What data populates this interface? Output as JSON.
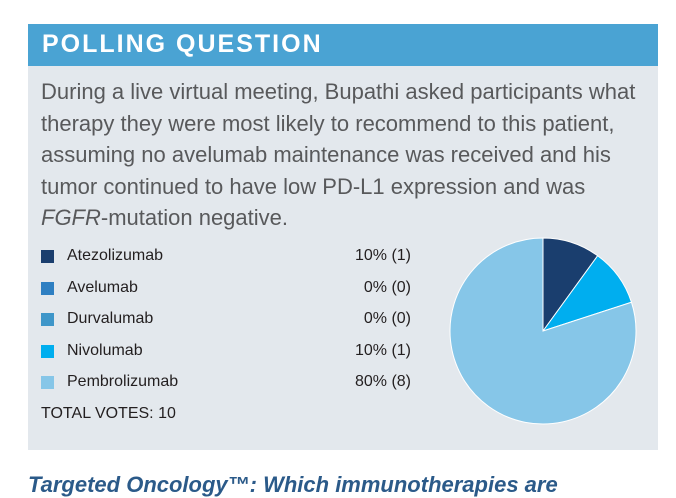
{
  "header": {
    "title": "POLLING QUESTION"
  },
  "question": {
    "part1": "During a live virtual meeting, Bupathi asked participants what therapy they were most likely to recommend to this patient, assuming no avelumab maintenance was received and his tumor continued to have low PD-L1 expression and was ",
    "italic": "FGFR",
    "part2": "-mutation negative."
  },
  "chart_data": {
    "type": "pie",
    "categories": [
      "Atezolizumab",
      "Avelumab",
      "Durvalumab",
      "Nivolumab",
      "Pembrolizumab"
    ],
    "values": [
      10,
      0,
      0,
      10,
      80
    ],
    "value_labels": [
      "10% (1)",
      "0% (0)",
      "0% (0)",
      "10% (1)",
      "80% (8)"
    ],
    "colors": [
      "#1a3e6e",
      "#2e7fc2",
      "#3e96c9",
      "#00aeef",
      "#86c6e8"
    ],
    "legend_position": "left",
    "total_label": "TOTAL VOTES: 10"
  },
  "footer": {
    "text": "Targeted Oncology™: Which immunotherapies are"
  }
}
